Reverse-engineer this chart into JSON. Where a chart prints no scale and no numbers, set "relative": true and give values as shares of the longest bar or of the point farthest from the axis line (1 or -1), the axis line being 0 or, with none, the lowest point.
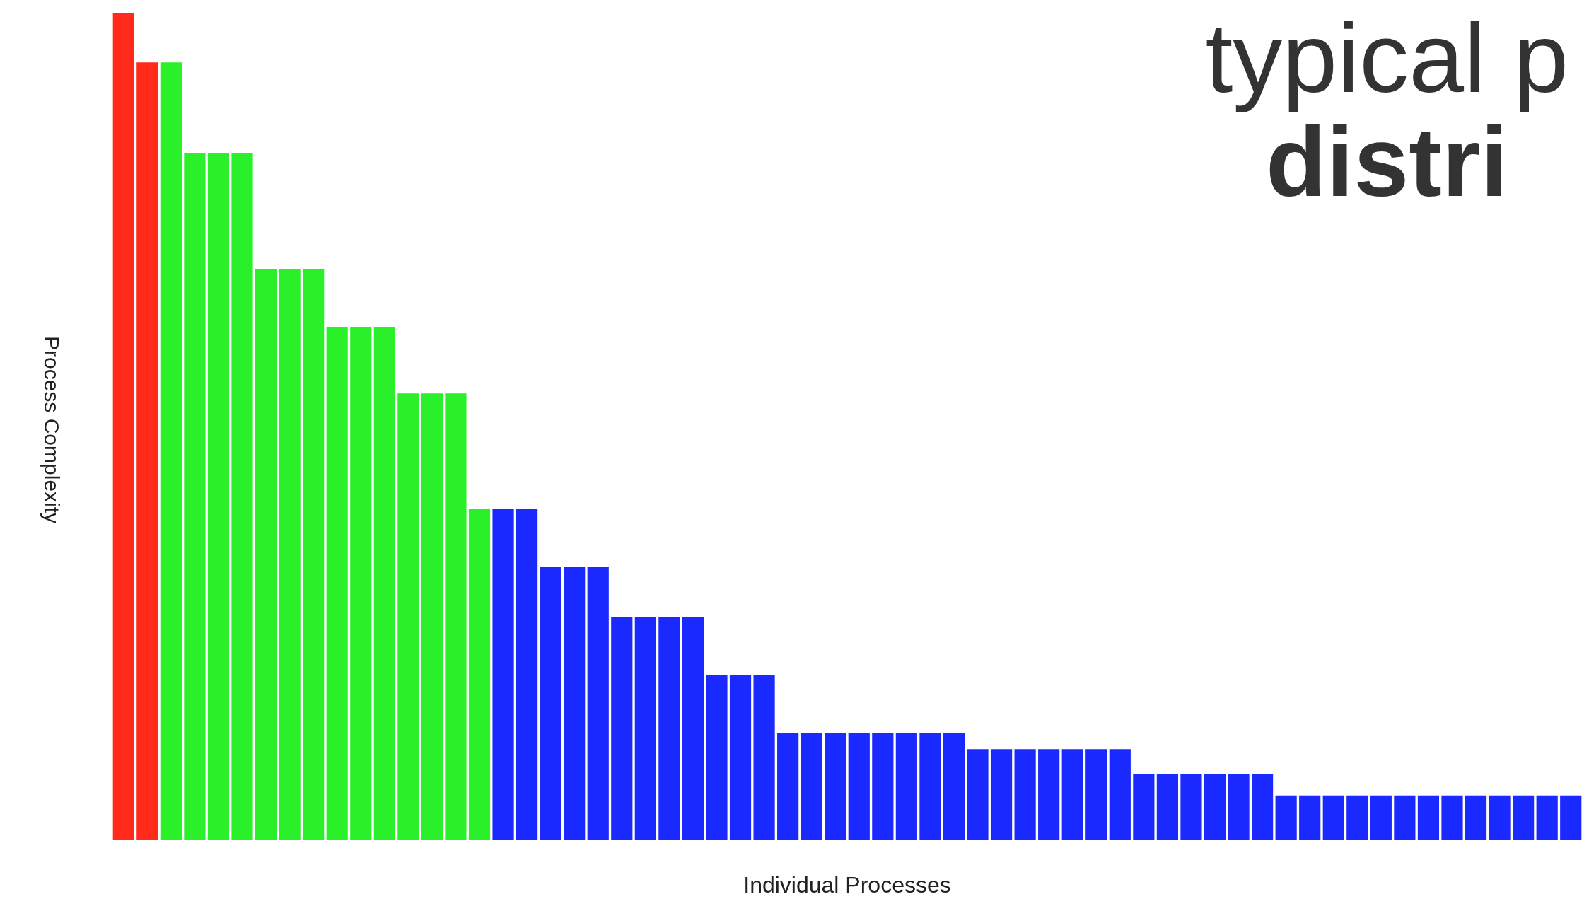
{
  "chart_data": {
    "type": "bar",
    "title": "typical p",
    "subtitle": "distri",
    "xlabel": "Individual Processes",
    "ylabel": "Process Complexity",
    "relative": true,
    "grid": false,
    "legend": false,
    "categories": [
      null,
      null,
      null,
      null,
      null,
      null,
      null,
      null,
      null,
      null,
      null,
      null,
      null,
      null,
      null,
      null,
      null,
      null,
      null,
      null,
      null,
      null,
      null,
      null,
      null,
      null,
      null,
      null,
      null,
      null,
      null,
      null,
      null,
      null,
      null,
      null,
      null,
      null,
      null,
      null,
      null,
      null,
      null,
      null,
      null,
      null,
      null,
      null,
      null,
      null,
      null,
      null,
      null,
      null,
      null,
      null,
      null,
      null,
      null,
      null,
      null,
      null
    ],
    "series": [
      {
        "values": [
          1.0,
          0.94,
          0.94,
          0.83,
          0.83,
          0.83,
          0.69,
          0.69,
          0.69,
          0.62,
          0.62,
          0.62,
          0.54,
          0.54,
          0.54,
          0.4,
          0.4,
          0.4,
          0.33,
          0.33,
          0.33,
          0.27,
          0.27,
          0.27,
          0.27,
          0.2,
          0.2,
          0.2,
          0.13,
          0.13,
          0.13,
          0.13,
          0.13,
          0.13,
          0.13,
          0.13,
          0.11,
          0.11,
          0.11,
          0.11,
          0.11,
          0.11,
          0.11,
          0.08,
          0.08,
          0.08,
          0.08,
          0.08,
          0.08,
          0.054,
          0.054,
          0.054,
          0.054,
          0.054,
          0.054,
          0.054,
          0.054,
          0.054,
          0.054,
          0.054,
          0.054,
          0.054
        ],
        "colors": [
          "#ff2a1a",
          "#ff2a1a",
          "#2af02a",
          "#2af02a",
          "#2af02a",
          "#2af02a",
          "#2af02a",
          "#2af02a",
          "#2af02a",
          "#2af02a",
          "#2af02a",
          "#2af02a",
          "#2af02a",
          "#2af02a",
          "#2af02a",
          "#2af02a",
          "#1a2aff",
          "#1a2aff",
          "#1a2aff",
          "#1a2aff",
          "#1a2aff",
          "#1a2aff",
          "#1a2aff",
          "#1a2aff",
          "#1a2aff",
          "#1a2aff",
          "#1a2aff",
          "#1a2aff",
          "#1a2aff",
          "#1a2aff",
          "#1a2aff",
          "#1a2aff",
          "#1a2aff",
          "#1a2aff",
          "#1a2aff",
          "#1a2aff",
          "#1a2aff",
          "#1a2aff",
          "#1a2aff",
          "#1a2aff",
          "#1a2aff",
          "#1a2aff",
          "#1a2aff",
          "#1a2aff",
          "#1a2aff",
          "#1a2aff",
          "#1a2aff",
          "#1a2aff",
          "#1a2aff",
          "#1a2aff",
          "#1a2aff",
          "#1a2aff",
          "#1a2aff",
          "#1a2aff",
          "#1a2aff",
          "#1a2aff",
          "#1a2aff",
          "#1a2aff",
          "#1a2aff",
          "#1a2aff",
          "#1a2aff",
          "#1a2aff"
        ]
      }
    ]
  }
}
